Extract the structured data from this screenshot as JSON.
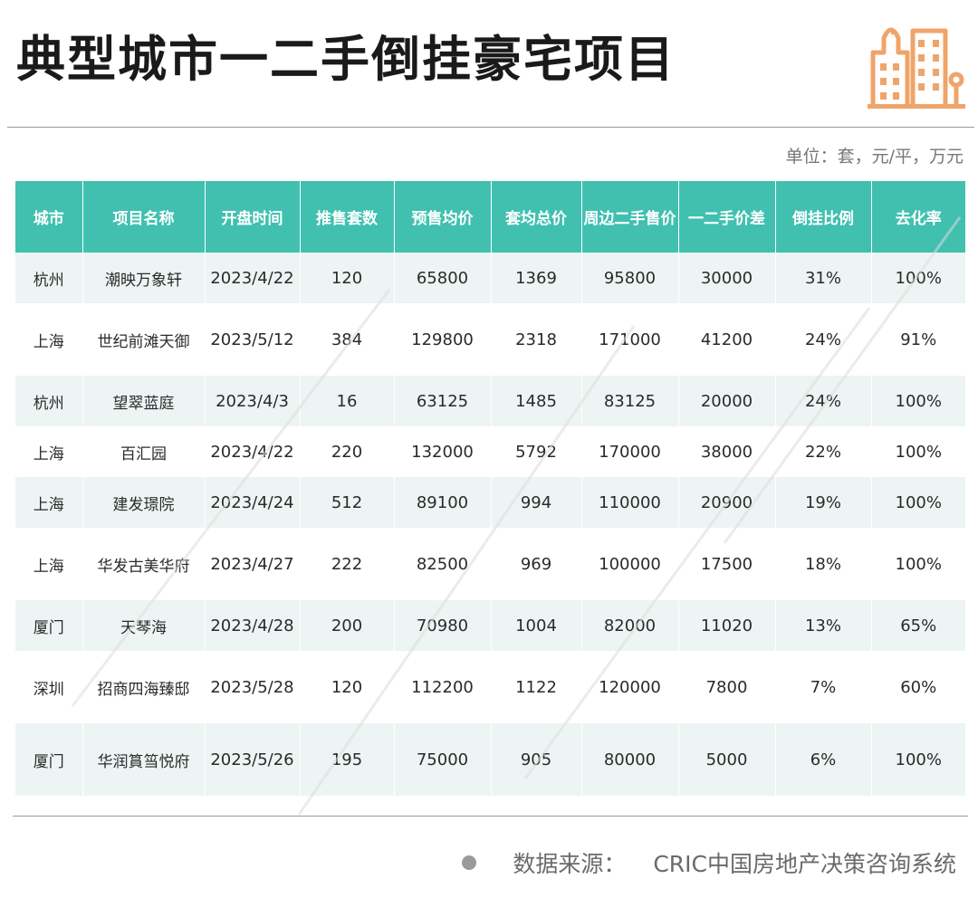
{
  "title": "典型城市一二手倒挂豪宅项目",
  "unit_note": "单位：套，元/平，万元",
  "table": {
    "headers": [
      "城市",
      "项目名称",
      "开盘时间",
      "推售套数",
      "预售均价",
      "套均总价",
      "周边二手售价",
      "一二手价差",
      "倒挂比例",
      "去化率"
    ],
    "rows": [
      [
        "杭州",
        "潮映万象轩",
        "2023/4/22",
        "120",
        "65800",
        "1369",
        "95800",
        "30000",
        "31%",
        "100%"
      ],
      [
        "上海",
        "世纪前滩天御",
        "2023/5/12",
        "384",
        "129800",
        "2318",
        "171000",
        "41200",
        "24%",
        "91%"
      ],
      [
        "杭州",
        "望翠蓝庭",
        "2023/4/3",
        "16",
        "63125",
        "1485",
        "83125",
        "20000",
        "24%",
        "100%"
      ],
      [
        "上海",
        "百汇园",
        "2023/4/22",
        "220",
        "132000",
        "5792",
        "170000",
        "38000",
        "22%",
        "100%"
      ],
      [
        "上海",
        "建发璟院",
        "2023/4/24",
        "512",
        "89100",
        "994",
        "110000",
        "20900",
        "19%",
        "100%"
      ],
      [
        "上海",
        "华发古美华府",
        "2023/4/27",
        "222",
        "82500",
        "969",
        "100000",
        "17500",
        "18%",
        "100%"
      ],
      [
        "厦门",
        "天琴海",
        "2023/4/28",
        "200",
        "70980",
        "1004",
        "82000",
        "11020",
        "13%",
        "65%"
      ],
      [
        "深圳",
        "招商四海臻邸",
        "2023/5/28",
        "120",
        "112200",
        "1122",
        "120000",
        "7800",
        "7%",
        "60%"
      ],
      [
        "厦门",
        "华润篔筜悦府",
        "2023/5/26",
        "195",
        "75000",
        "905",
        "80000",
        "5000",
        "6%",
        "100%"
      ]
    ]
  },
  "footer": {
    "source_label": "数据来源：",
    "source_text": "CRIC中国房地产决策咨询系统"
  },
  "icons": {
    "logo": "city-buildings-icon",
    "footer_dot": "bullet-dot-icon"
  },
  "colors": {
    "header_bg": "#41c0b0",
    "stripe_bg": "#edf5f4",
    "logo_orange": "#f0a46a"
  }
}
